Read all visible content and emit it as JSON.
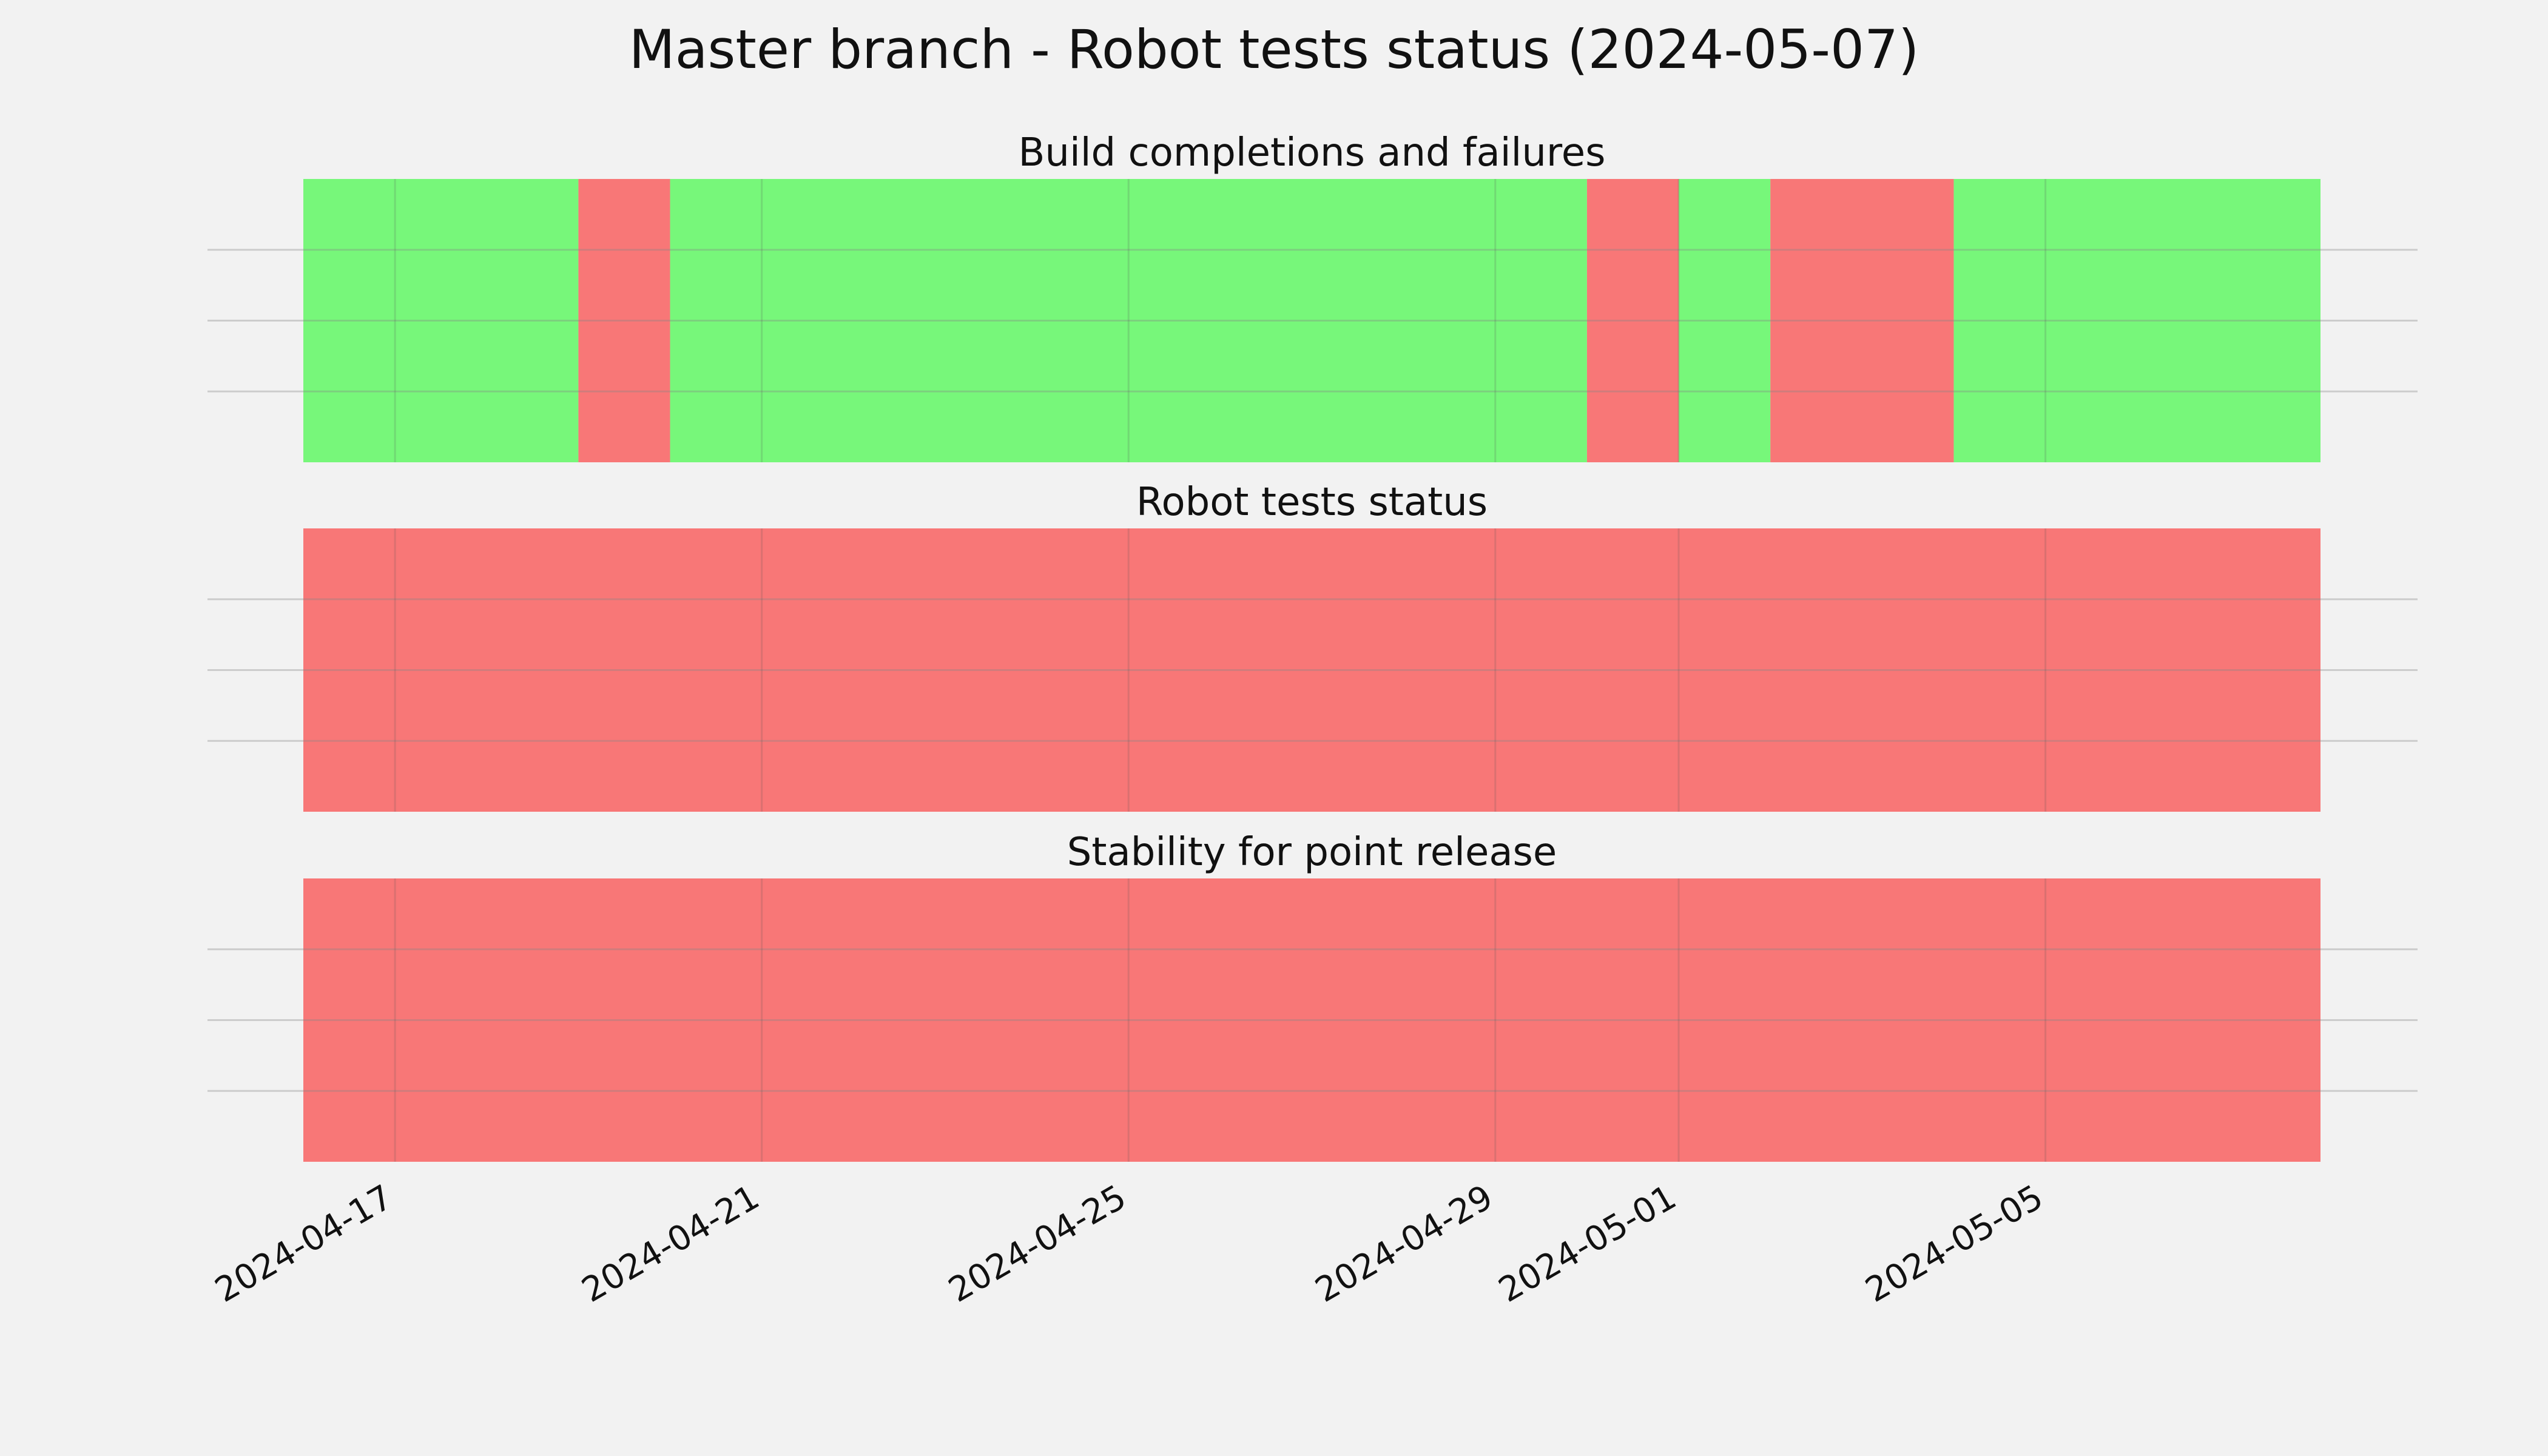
{
  "chart_data": {
    "type": "status-timeline",
    "title": "Master branch - Robot tests status (2024-05-07)",
    "x_range": [
      "2024-04-16",
      "2024-05-08"
    ],
    "x_ticks": [
      "2024-04-17",
      "2024-04-21",
      "2024-04-25",
      "2024-04-29",
      "2024-05-01",
      "2024-05-05"
    ],
    "grid": true,
    "colors": {
      "success": "#77f77a",
      "failure": "#f87777",
      "background": "#f2f2f2"
    },
    "panels": [
      {
        "title": "Build completions and failures",
        "segments": [
          {
            "start": "2024-04-16",
            "end": "2024-04-19",
            "status": "success"
          },
          {
            "start": "2024-04-19",
            "end": "2024-04-20",
            "status": "failure"
          },
          {
            "start": "2024-04-20",
            "end": "2024-04-30",
            "status": "success"
          },
          {
            "start": "2024-04-30",
            "end": "2024-05-01",
            "status": "failure"
          },
          {
            "start": "2024-05-01",
            "end": "2024-05-02",
            "status": "success"
          },
          {
            "start": "2024-05-02",
            "end": "2024-05-04",
            "status": "failure"
          },
          {
            "start": "2024-05-04",
            "end": "2024-05-08",
            "status": "success"
          }
        ]
      },
      {
        "title": "Robot tests status",
        "segments": [
          {
            "start": "2024-04-16",
            "end": "2024-05-08",
            "status": "failure"
          }
        ]
      },
      {
        "title": "Stability for point release",
        "segments": [
          {
            "start": "2024-04-16",
            "end": "2024-05-08",
            "status": "failure"
          }
        ]
      }
    ]
  }
}
